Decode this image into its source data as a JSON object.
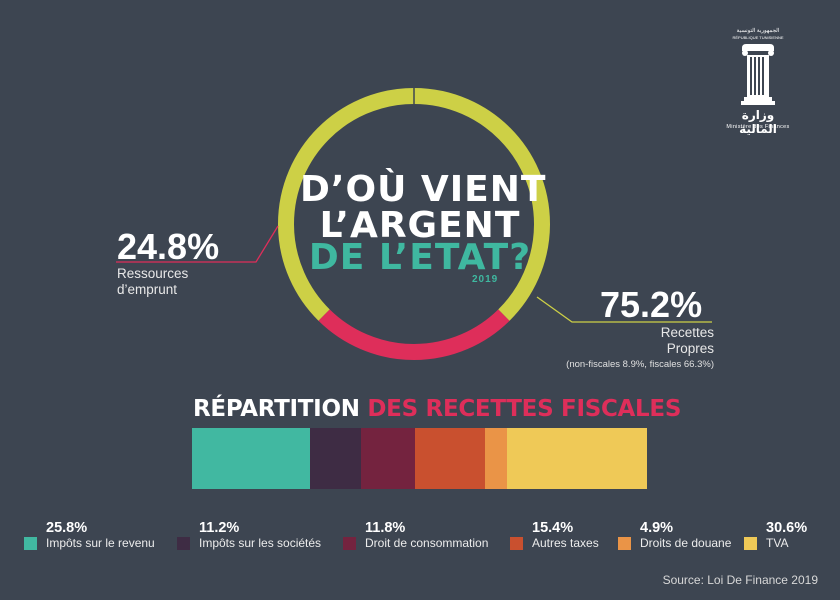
{
  "header": {
    "title_line1": "D’OÙ VIENT",
    "title_line2": "L’ARGENT",
    "title_line3": "DE L’ETAT?",
    "year": "2019"
  },
  "logo": {
    "arabic_top": "الجمهورية التونسية",
    "republic": "RÉPUBLIQUE TUNISIENNE",
    "arabic_name": "وزارة المالية",
    "french_name": "Ministère des Finances"
  },
  "donut": {
    "left": {
      "pct": "24.8%",
      "label_line1": "Ressources",
      "label_line2": "d’emprunt"
    },
    "right": {
      "pct": "75.2%",
      "label_line1": "Recettes",
      "label_line2": "Propres",
      "note": "(non-fiscales 8.9%, fiscales 66.3%)"
    }
  },
  "repartition": {
    "title_white": "RÉPARTITION",
    "title_red": "DES RECETTES FISCALES"
  },
  "source": "Source: Loi De Finance 2019",
  "colors": {
    "background": "#3d4551",
    "donut_red": "#de2e5a",
    "donut_yellow": "#cdd046",
    "teal": "#3fb8a0"
  },
  "chart_data": [
    {
      "type": "pie",
      "subtype": "donut",
      "categories": [
        "Ressources d’emprunt",
        "Recettes Propres"
      ],
      "values": [
        24.8,
        75.2
      ],
      "colors": [
        "#de2e5a",
        "#cdd046"
      ]
    },
    {
      "type": "bar",
      "subtype": "100% stacked horizontal",
      "title": "RÉPARTITION DES RECETTES FISCALES",
      "categories": [
        "Impôts sur le revenu",
        "Impôts sur les sociétés",
        "Droit de consommation",
        "Autres taxes",
        "Droits de douane",
        "TVA"
      ],
      "values": [
        25.8,
        11.2,
        11.8,
        15.4,
        4.9,
        30.6
      ],
      "labels": [
        "25.8%",
        "11.2%",
        "11.8%",
        "15.4%",
        "4.9%",
        "30.6%"
      ],
      "colors": [
        "#41b8a1",
        "#3e2c44",
        "#74233f",
        "#c9502f",
        "#ea9447",
        "#efc957"
      ],
      "legend": "bottom"
    }
  ]
}
